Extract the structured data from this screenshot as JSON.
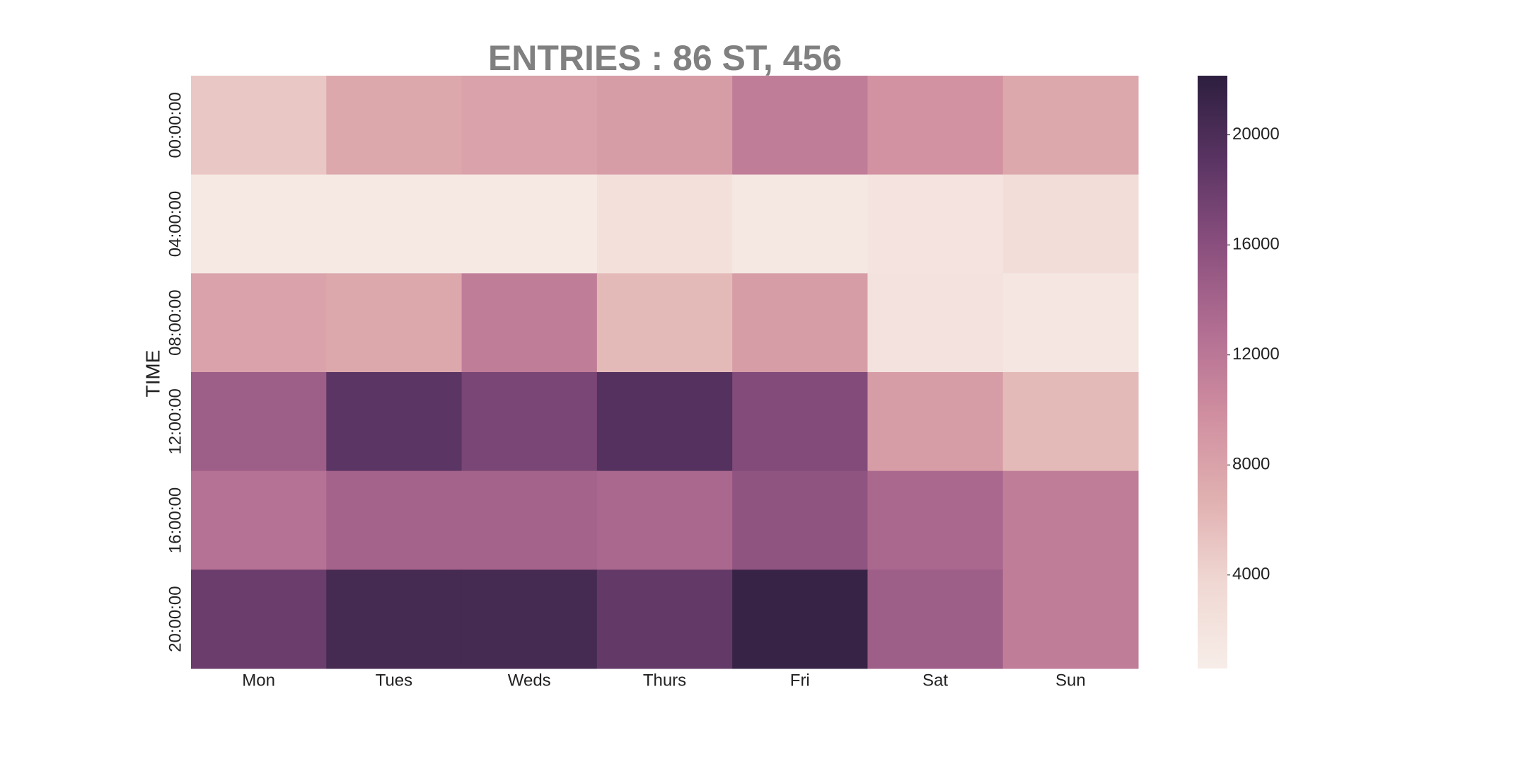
{
  "chart_data": {
    "type": "heatmap",
    "title": "ENTRIES : 86 ST, 456",
    "y_label": "TIME",
    "x_categories": [
      "Mon",
      "Tues",
      "Weds",
      "Thurs",
      "Fri",
      "Sat",
      "Sun"
    ],
    "y_categories": [
      "00:00:00",
      "04:00:00",
      "08:00:00",
      "12:00:00",
      "16:00:00",
      "20:00:00"
    ],
    "values": [
      [
        5000,
        7500,
        8000,
        8500,
        11500,
        9500,
        7500
      ],
      [
        1200,
        1200,
        1200,
        2500,
        1300,
        2000,
        3000
      ],
      [
        8000,
        7500,
        11500,
        6000,
        8500,
        2200,
        1600
      ],
      [
        14500,
        19000,
        17000,
        19500,
        16500,
        8500,
        6000
      ],
      [
        12500,
        14000,
        14000,
        13500,
        15500,
        13500,
        11500
      ],
      [
        18000,
        20500,
        20500,
        18500,
        21500,
        14500,
        11500
      ]
    ],
    "zlim": [
      600,
      22150
    ],
    "zticks": [
      4000,
      8000,
      12000,
      16000,
      20000
    ],
    "colorscale": [
      "#f7ede8",
      "#f0d8d3",
      "#e0b0b0",
      "#d08ea0",
      "#b26e92",
      "#8a4f7e",
      "#5a3463",
      "#2d1e3e"
    ]
  }
}
